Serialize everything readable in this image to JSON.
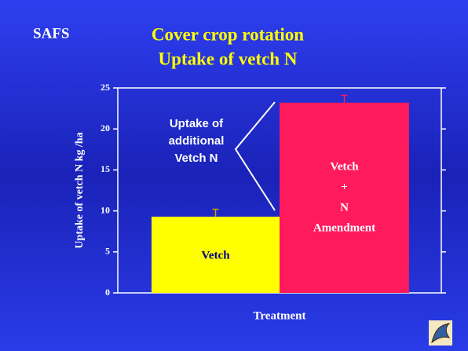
{
  "header": {
    "org": "SAFS",
    "title_lines": [
      "Cover crop rotation",
      "Uptake of vetch N"
    ]
  },
  "chart_data": {
    "type": "bar",
    "categories": [
      [
        "Vetch"
      ],
      [
        "Vetch",
        "+",
        "N",
        "Amendment"
      ]
    ],
    "values": [
      9.3,
      23.2
    ],
    "errors": [
      0.9,
      0.9
    ],
    "colors": [
      "#ffff00",
      "#ff1a5e"
    ],
    "label_colors": [
      "#000080",
      "#ffffff"
    ],
    "error_colors": [
      "#c8a000",
      "#ff1a5e"
    ],
    "ylim": [
      0,
      25
    ],
    "yticks": [
      0,
      5,
      10,
      15,
      20,
      25
    ],
    "ylabel": "Uptake of vetch N kg /ha",
    "xlabel": "Treatment",
    "annotation": [
      "Uptake of",
      "additional",
      "Vetch N"
    ]
  }
}
